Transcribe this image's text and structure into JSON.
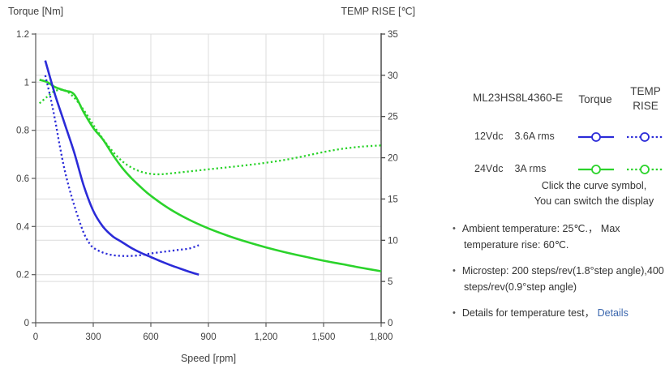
{
  "colors": {
    "blue": "#2b2bd8",
    "green": "#2bd32b",
    "grid": "#dcdcdc",
    "axis": "#595959",
    "axis_right": "#3d3d3d",
    "tick_text": "#404040",
    "text": "#333333",
    "link": "#3a66ad"
  },
  "chart_data": {
    "type": "line",
    "title_left": "Torque  [Nm]",
    "title_right": "TEMP RISE [℃]",
    "grid": true,
    "legend_position": "right-panel",
    "x_axis": {
      "label": "Speed [rpm]",
      "min": 0,
      "max": 1800,
      "ticks": [
        0,
        300,
        600,
        900,
        1200,
        1500,
        1800
      ],
      "tick_labels": [
        "0",
        "300",
        "600",
        "900",
        "1,200",
        "1,500",
        "1,800"
      ]
    },
    "y_left": {
      "label": "Torque [Nm]",
      "min": 0,
      "max": 1.2,
      "ticks": [
        0,
        0.2,
        0.4,
        0.6,
        0.8,
        1,
        1.2
      ],
      "tick_labels": [
        "0",
        "0.2",
        "0.4",
        "0.6",
        "0.8",
        "1",
        "1.2"
      ]
    },
    "y_right": {
      "label": "TEMP RISE [℃]",
      "min": 0,
      "max": 35,
      "ticks": [
        0,
        5,
        10,
        15,
        20,
        25,
        30,
        35
      ],
      "tick_labels": [
        "0",
        "5",
        "10",
        "15",
        "20",
        "25",
        "30",
        "35"
      ]
    },
    "series": [
      {
        "id": "torque-12vdc",
        "name": "12Vdc 3.6A rms Torque",
        "axis": "left",
        "line": "solid",
        "color": "#2b2bd8",
        "points": [
          [
            50,
            1.09
          ],
          [
            100,
            0.95
          ],
          [
            150,
            0.83
          ],
          [
            200,
            0.71
          ],
          [
            250,
            0.57
          ],
          [
            300,
            0.465
          ],
          [
            350,
            0.4
          ],
          [
            400,
            0.36
          ],
          [
            450,
            0.335
          ],
          [
            500,
            0.31
          ],
          [
            550,
            0.29
          ],
          [
            600,
            0.273
          ],
          [
            650,
            0.256
          ],
          [
            700,
            0.24
          ],
          [
            750,
            0.226
          ],
          [
            800,
            0.212
          ],
          [
            850,
            0.2
          ]
        ]
      },
      {
        "id": "temprise-12vdc",
        "name": "12Vdc 3.6A rms TEMP RISE",
        "axis": "right",
        "line": "dotted",
        "color": "#2b2bd8",
        "points": [
          [
            50,
            30
          ],
          [
            75,
            27.5
          ],
          [
            100,
            24.7
          ],
          [
            125,
            21.5
          ],
          [
            150,
            18.6
          ],
          [
            175,
            16.3
          ],
          [
            200,
            14.3
          ],
          [
            225,
            12.5
          ],
          [
            250,
            10.9
          ],
          [
            275,
            9.8
          ],
          [
            300,
            9.1
          ],
          [
            350,
            8.5
          ],
          [
            400,
            8.2
          ],
          [
            450,
            8.1
          ],
          [
            500,
            8.1
          ],
          [
            550,
            8.2
          ],
          [
            600,
            8.4
          ],
          [
            650,
            8.55
          ],
          [
            700,
            8.7
          ],
          [
            750,
            8.85
          ],
          [
            800,
            9.0
          ],
          [
            850,
            9.4
          ]
        ]
      },
      {
        "id": "torque-24vdc",
        "name": "24Vdc 3A rms Torque",
        "axis": "left",
        "line": "solid",
        "color": "#2bd32b",
        "points": [
          [
            20,
            1.01
          ],
          [
            60,
            1.0
          ],
          [
            100,
            0.98
          ],
          [
            150,
            0.965
          ],
          [
            200,
            0.95
          ],
          [
            250,
            0.875
          ],
          [
            300,
            0.81
          ],
          [
            350,
            0.762
          ],
          [
            400,
            0.7
          ],
          [
            450,
            0.645
          ],
          [
            500,
            0.6
          ],
          [
            550,
            0.562
          ],
          [
            600,
            0.528
          ],
          [
            700,
            0.472
          ],
          [
            800,
            0.428
          ],
          [
            900,
            0.392
          ],
          [
            1000,
            0.362
          ],
          [
            1100,
            0.336
          ],
          [
            1200,
            0.313
          ],
          [
            1300,
            0.293
          ],
          [
            1400,
            0.275
          ],
          [
            1500,
            0.258
          ],
          [
            1600,
            0.243
          ],
          [
            1700,
            0.228
          ],
          [
            1800,
            0.214
          ]
        ]
      },
      {
        "id": "temprise-24vdc",
        "name": "24Vdc 3A rms TEMP RISE",
        "axis": "right",
        "line": "dotted",
        "color": "#2bd32b",
        "points": [
          [
            20,
            26.6
          ],
          [
            60,
            27.4
          ],
          [
            100,
            28.1
          ],
          [
            150,
            28.2
          ],
          [
            200,
            27.3
          ],
          [
            250,
            25.8
          ],
          [
            300,
            24.0
          ],
          [
            350,
            22.3
          ],
          [
            400,
            20.8
          ],
          [
            450,
            19.6
          ],
          [
            500,
            18.8
          ],
          [
            550,
            18.3
          ],
          [
            600,
            18.05
          ],
          [
            650,
            18.0
          ],
          [
            700,
            18.1
          ],
          [
            800,
            18.35
          ],
          [
            900,
            18.6
          ],
          [
            1000,
            18.85
          ],
          [
            1100,
            19.1
          ],
          [
            1200,
            19.4
          ],
          [
            1300,
            19.75
          ],
          [
            1400,
            20.2
          ],
          [
            1500,
            20.7
          ],
          [
            1600,
            21.1
          ],
          [
            1700,
            21.35
          ],
          [
            1800,
            21.5
          ]
        ]
      }
    ]
  },
  "legend": {
    "model": "ML23HS8L4360-E",
    "col_torque": "Torque",
    "col_temp_line1": "TEMP",
    "col_temp_line2": "RISE",
    "rows": [
      {
        "voltage": "12Vdc",
        "current": "3.6A rms"
      },
      {
        "voltage": "24Vdc",
        "current": "3A rms"
      }
    ],
    "hint_line1": "Click the curve symbol,",
    "hint_line2": "You can switch the display"
  },
  "notes": {
    "items": [
      {
        "line1": "Ambient temperature: 25℃.， Max",
        "line2": "temperature rise: 60℃."
      },
      {
        "line1": "Microstep: 200 steps/rev(1.8°step angle),400",
        "line2": "steps/rev(0.9°step angle)"
      },
      {
        "line1": "Details for temperature test，",
        "link_label": "Details"
      }
    ]
  }
}
